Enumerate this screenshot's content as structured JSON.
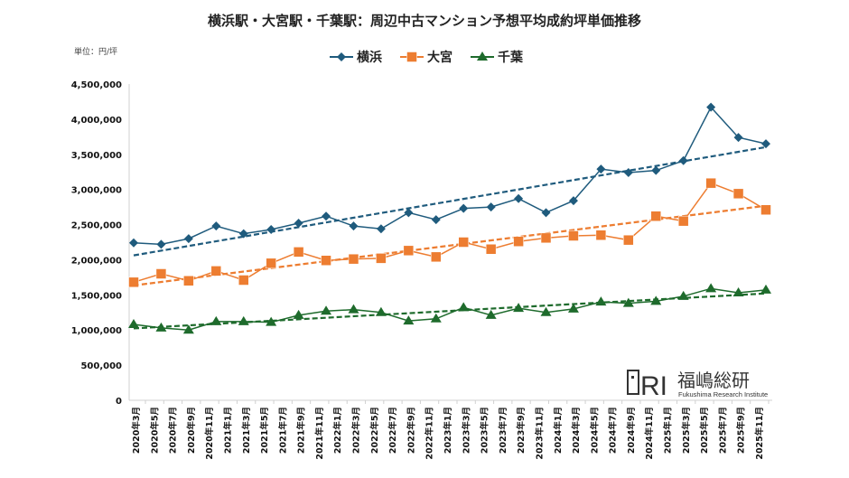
{
  "chart_data": {
    "type": "line",
    "title": "横浜駅・大宮駅・千葉駅：周辺中古マンション予想平均成約坪単価推移",
    "unit_label": "単位：円/坪",
    "legend_position": "top",
    "grid": false,
    "trendlines": "linear, dashed",
    "ylim": [
      0,
      4500000
    ],
    "yticks": [
      0,
      500000,
      1000000,
      1500000,
      2000000,
      2500000,
      3000000,
      3500000,
      4000000,
      4500000
    ],
    "ytick_labels": [
      "0",
      "500,000",
      "1,000,000",
      "1,500,000",
      "2,000,000",
      "2,500,000",
      "3,000,000",
      "3,500,000",
      "4,000,000",
      "4,500,000"
    ],
    "x_tick_labels": [
      "2020年3月",
      "2020年5月",
      "2020年7月",
      "2020年9月",
      "2020年11月",
      "2021年1月",
      "2021年3月",
      "2021年5月",
      "2021年7月",
      "2021年9月",
      "2021年11月",
      "2022年1月",
      "2022年3月",
      "2022年5月",
      "2022年7月",
      "2022年9月",
      "2022年11月",
      "2023年1月",
      "2023年3月",
      "2023年5月",
      "2023年7月",
      "2023年9月",
      "2023年11月",
      "2024年1月",
      "2024年3月",
      "2024年5月",
      "2024年7月",
      "2024年9月",
      "2024年11月",
      "2025年1月",
      "2025年3月",
      "2025年5月",
      "2025年7月",
      "2025年9月",
      "2025年11月"
    ],
    "series": [
      {
        "name": "横浜",
        "color": "#1f5b7d",
        "marker": "diamond",
        "values": [
          2240000,
          2220000,
          2300000,
          2480000,
          2370000,
          2430000,
          2520000,
          2620000,
          2480000,
          2440000,
          2670000,
          2570000,
          2730000,
          2750000,
          2870000,
          2670000,
          2840000,
          3290000,
          3240000,
          3270000,
          3410000,
          4170000,
          3740000,
          3650000
        ]
      },
      {
        "name": "大宮",
        "color": "#ed7d31",
        "marker": "square",
        "values": [
          1680000,
          1800000,
          1700000,
          1840000,
          1710000,
          1950000,
          2110000,
          1990000,
          2010000,
          2020000,
          2130000,
          2040000,
          2250000,
          2150000,
          2260000,
          2310000,
          2340000,
          2350000,
          2280000,
          2620000,
          2550000,
          3090000,
          2940000,
          2710000
        ]
      },
      {
        "name": "千葉",
        "color": "#1e6b2c",
        "marker": "triangle",
        "values": [
          1080000,
          1030000,
          1000000,
          1120000,
          1120000,
          1110000,
          1210000,
          1270000,
          1290000,
          1250000,
          1130000,
          1160000,
          1320000,
          1210000,
          1310000,
          1250000,
          1300000,
          1400000,
          1380000,
          1410000,
          1480000,
          1590000,
          1530000,
          1570000
        ]
      }
    ]
  },
  "logo": {
    "mark": "FRI",
    "name_jp": "福嶋総研",
    "name_en": "Fukushima Research Institute"
  }
}
